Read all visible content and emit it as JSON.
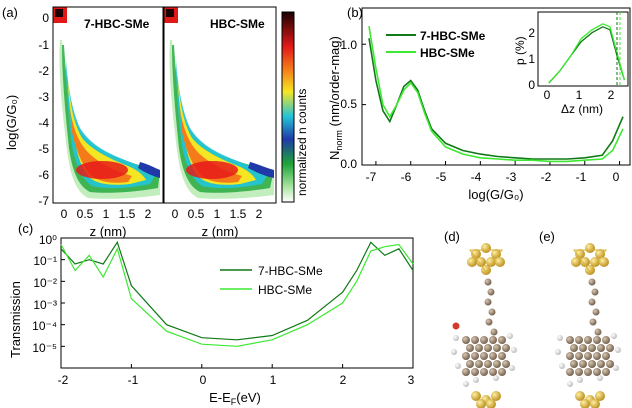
{
  "colors": {
    "dark_green": "#0f7a16",
    "light_green": "#3ee832",
    "gold": "#d9b23a",
    "carbon": "#8a7560",
    "hydrogen": "#e8e8e8"
  },
  "panel_a": {
    "label": "(a)",
    "left_title": "7-HBC-SMe",
    "right_title": "HBC-SMe",
    "ylabel": "log(G/G₀)",
    "xlabel_left": "z (nm)",
    "xlabel_right": "z (nm)",
    "colorbar_label": "normalized n counts",
    "y_ticks": [
      "0",
      "-1",
      "-2",
      "-3",
      "-4",
      "-5",
      "-6",
      "-7"
    ],
    "x_ticks": [
      "0",
      "0.5",
      "1",
      "1.5",
      "2"
    ]
  },
  "panel_b": {
    "label": "(b)",
    "ylabel_main": "N",
    "ylabel_sub": "norm",
    "ylabel_rest": " (nm/order-mag)",
    "xlabel": "log(G/G₀)",
    "y_ticks": [
      "0.0",
      "0.5",
      "1.0"
    ],
    "x_ticks": [
      "-7",
      "-6",
      "-5",
      "-4",
      "-3",
      "-2",
      "-1",
      "0"
    ],
    "legend": [
      "7-HBC-SMe",
      "HBC-SMe"
    ],
    "inset": {
      "ylabel": "p (%)",
      "xlabel": "Δz (nm)",
      "y_ticks": [
        "0",
        "1",
        "2"
      ],
      "x_ticks": [
        "0",
        "1",
        "2"
      ]
    }
  },
  "panel_c": {
    "label": "(c)",
    "ylabel": "Transmission",
    "xlabel": "E-E",
    "xlabel_sub": "F",
    "xlabel_unit": "(eV)",
    "x_ticks": [
      "-2",
      "-1",
      "0",
      "1",
      "2",
      "3"
    ],
    "y_ticks": [
      "10⁰",
      "10⁻¹",
      "10⁻²",
      "10⁻³",
      "10⁻⁴",
      "10⁻⁵"
    ],
    "legend": [
      "7-HBC-SMe",
      "HBC-SMe"
    ]
  },
  "panel_d": {
    "label": "(d)"
  },
  "panel_e": {
    "label": "(e)"
  },
  "chart_data": [
    {
      "type": "heatmap",
      "title": "7-HBC-SMe / HBC-SMe",
      "xlabel": "z (nm)",
      "ylabel": "log(G/G0)",
      "xlim": [
        -0.3,
        2.4
      ],
      "ylim": [
        -7,
        0.6
      ],
      "colorbar": "normalized n counts"
    },
    {
      "type": "line",
      "xlabel": "log(G/G0)",
      "ylabel": "Nnorm (nm/order-mag)",
      "xlim": [
        -7.4,
        0.3
      ],
      "ylim": [
        0,
        1.3
      ],
      "x": [
        -7.2,
        -7.0,
        -6.8,
        -6.6,
        -6.4,
        -6.2,
        -6.0,
        -5.8,
        -5.6,
        -5.4,
        -5.0,
        -4.5,
        -4.0,
        -3.5,
        -3.0,
        -2.5,
        -2.0,
        -1.5,
        -1.0,
        -0.5,
        -0.2,
        0.1
      ],
      "series": [
        {
          "name": "7-HBC-SMe",
          "values": [
            1.05,
            0.7,
            0.45,
            0.36,
            0.5,
            0.65,
            0.7,
            0.62,
            0.45,
            0.3,
            0.18,
            0.12,
            0.09,
            0.07,
            0.06,
            0.05,
            0.05,
            0.05,
            0.06,
            0.08,
            0.2,
            0.4
          ]
        },
        {
          "name": "HBC-SMe",
          "values": [
            1.15,
            0.8,
            0.5,
            0.4,
            0.5,
            0.62,
            0.68,
            0.6,
            0.43,
            0.28,
            0.15,
            0.09,
            0.06,
            0.05,
            0.04,
            0.04,
            0.03,
            0.03,
            0.04,
            0.05,
            0.12,
            0.3
          ]
        }
      ]
    },
    {
      "type": "line",
      "title": "inset",
      "xlabel": "Δz (nm)",
      "ylabel": "p (%)",
      "xlim": [
        0,
        2.5
      ],
      "ylim": [
        0,
        2.5
      ],
      "x": [
        0.3,
        0.6,
        0.9,
        1.2,
        1.5,
        1.8,
        2.0,
        2.2,
        2.4
      ],
      "series": [
        {
          "name": "7-HBC-SMe",
          "values": [
            0.1,
            0.5,
            1.0,
            1.5,
            1.8,
            2.0,
            1.9,
            1.0,
            0.2
          ]
        },
        {
          "name": "HBC-SMe",
          "values": [
            0.1,
            0.5,
            1.0,
            1.6,
            1.9,
            2.1,
            2.0,
            1.1,
            0.2
          ]
        }
      ]
    },
    {
      "type": "line",
      "xlabel": "E-EF (eV)",
      "ylabel": "Transmission",
      "xlim": [
        -2,
        3
      ],
      "ylim_log10": [
        -6,
        0
      ],
      "x": [
        -2.0,
        -1.8,
        -1.6,
        -1.4,
        -1.2,
        -1.0,
        -0.5,
        0.0,
        0.5,
        1.0,
        1.5,
        2.0,
        2.2,
        2.4,
        2.6,
        2.8,
        3.0
      ],
      "series": [
        {
          "name": "7-HBC-SMe",
          "log10_values": [
            -0.5,
            -1.2,
            -1.0,
            -1.2,
            -0.2,
            -2.2,
            -4.0,
            -4.6,
            -4.7,
            -4.5,
            -3.8,
            -2.5,
            -1.5,
            -0.2,
            -0.8,
            -0.5,
            -1.5
          ]
        },
        {
          "name": "HBC-SMe",
          "log10_values": [
            -0.3,
            -1.5,
            -0.8,
            -1.8,
            -0.5,
            -2.8,
            -4.3,
            -4.9,
            -5.0,
            -4.7,
            -4.0,
            -3.0,
            -2.0,
            -0.6,
            -0.4,
            -0.3,
            -1.2
          ]
        }
      ]
    }
  ]
}
